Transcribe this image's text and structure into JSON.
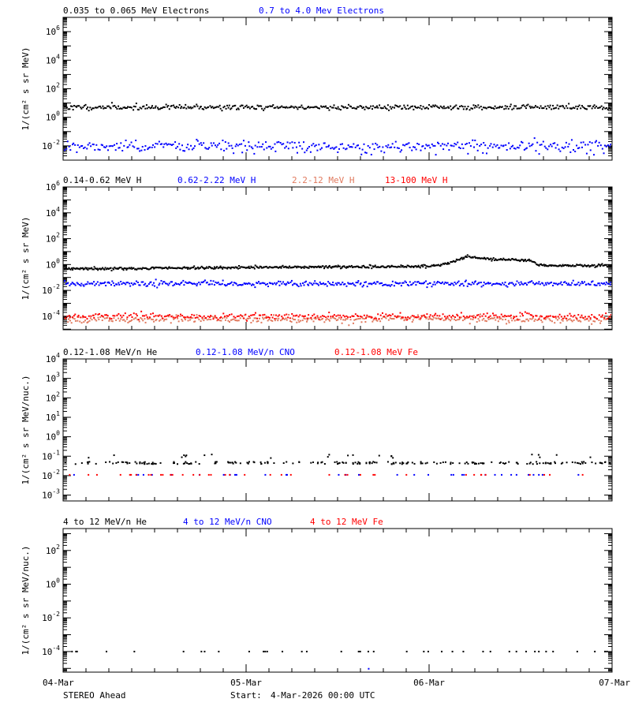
{
  "footer": {
    "spacecraft": "STEREO Ahead",
    "start_label": "Start:",
    "start_value": "4-Mar-2026 00:00 UTC"
  },
  "colors": {
    "black": "#000000",
    "blue": "#0000ff",
    "salmon": "#e07a5f",
    "red": "#ff0000"
  },
  "chart_data": [
    {
      "type": "scatter",
      "scale_y": "log",
      "ylabel": "1/(cm² s sr MeV)",
      "ylim": [
        0.001,
        10000000
      ],
      "yticks": [
        {
          "exp": -2,
          "label": "10-2"
        },
        {
          "exp": 0,
          "label": "100"
        },
        {
          "exp": 2,
          "label": "102"
        },
        {
          "exp": 4,
          "label": "104"
        },
        {
          "exp": 6,
          "label": "106"
        }
      ],
      "xticks": [
        "04-Mar",
        "05-Mar",
        "06-Mar",
        "07-Mar"
      ],
      "xlim_days": [
        0,
        3
      ],
      "series": [
        {
          "name": "0.035 to 0.065 MeV Electrons",
          "color": "#000000",
          "style": "band",
          "level": 5,
          "scatter": 0.09,
          "n": 450,
          "seed": 11
        },
        {
          "name": "0.7 to 4.0 Mev Electrons",
          "color": "#0000ff",
          "style": "band",
          "level": 0.009,
          "scatter": 0.22,
          "n": 380,
          "seed": 12
        }
      ]
    },
    {
      "type": "scatter",
      "scale_y": "log",
      "ylabel": "1/(cm² s sr MeV)",
      "ylim": [
        9e-06,
        1000000
      ],
      "yticks": [
        {
          "exp": -4,
          "label": "10-4"
        },
        {
          "exp": -2,
          "label": "10-2"
        },
        {
          "exp": 0,
          "label": "100"
        },
        {
          "exp": 2,
          "label": "102"
        },
        {
          "exp": 4,
          "label": "104"
        },
        {
          "exp": 6,
          "label": "106"
        }
      ],
      "xticks": [
        "04-Mar",
        "05-Mar",
        "06-Mar",
        "07-Mar"
      ],
      "xlim_days": [
        0,
        3
      ],
      "series": [
        {
          "name": "0.14-0.62 MeV H",
          "color": "#000000",
          "style": "profile",
          "profile": [
            [
              0,
              0.45
            ],
            [
              1.0,
              0.6
            ],
            [
              1.8,
              0.7
            ],
            [
              2.0,
              0.75
            ],
            [
              2.1,
              1.2
            ],
            [
              2.2,
              3.8
            ],
            [
              2.35,
              2.6
            ],
            [
              2.55,
              2.2
            ],
            [
              2.6,
              0.9
            ],
            [
              3.0,
              0.8
            ]
          ],
          "scatter": 0.05,
          "n": 600,
          "seed": 21
        },
        {
          "name": "0.62-2.22 MeV H",
          "color": "#0000ff",
          "style": "band",
          "level": 0.033,
          "scatter": 0.1,
          "n": 450,
          "seed": 22
        },
        {
          "name": "2.2-12 MeV H",
          "color": "#e07a5f",
          "style": "band",
          "level": 6e-05,
          "scatter": 0.13,
          "n": 400,
          "seed": 23
        },
        {
          "name": "13-100 MeV H",
          "color": "#ff0000",
          "style": "band",
          "level": 0.0001,
          "scatter": 0.12,
          "n": 320,
          "seed": 24
        }
      ]
    },
    {
      "type": "scatter",
      "scale_y": "log",
      "ylabel": "1/(cm² s sr MeV/nuc.)",
      "ylim": [
        0.0005,
        10000
      ],
      "yticks": [
        {
          "exp": -3,
          "label": "10-3"
        },
        {
          "exp": -2,
          "label": "10-2"
        },
        {
          "exp": -1,
          "label": "10-1"
        },
        {
          "exp": 0,
          "label": "100"
        },
        {
          "exp": 1,
          "label": "101"
        },
        {
          "exp": 2,
          "label": "102"
        },
        {
          "exp": 3,
          "label": "103"
        },
        {
          "exp": 4,
          "label": "104"
        }
      ],
      "xticks": [
        "04-Mar",
        "05-Mar",
        "06-Mar",
        "07-Mar"
      ],
      "xlim_days": [
        0,
        3
      ],
      "series": [
        {
          "name": "0.12-1.08 MeV/n He",
          "color": "#000000",
          "style": "sparse",
          "level": 0.045,
          "jitter": 0.06,
          "n": 210,
          "seed": 31,
          "extra_level": 0.1,
          "extra_n": 22
        },
        {
          "name": "0.12-1.08 MeV/n CNO",
          "color": "#0000ff",
          "style": "sparse",
          "level": 0.011,
          "jitter": 0.0,
          "n": 34,
          "seed": 32
        },
        {
          "name": "0.12-1.08 MeV Fe",
          "color": "#ff0000",
          "style": "sparse",
          "level": 0.011,
          "jitter": 0.0,
          "n": 40,
          "seed": 33
        }
      ]
    },
    {
      "type": "scatter",
      "scale_y": "log",
      "ylabel": "1/(cm² s sr MeV/nuc.)",
      "ylim": [
        6e-06,
        2000
      ],
      "yticks": [
        {
          "exp": -4,
          "label": "10-4"
        },
        {
          "exp": -2,
          "label": "10-2"
        },
        {
          "exp": 0,
          "label": "100"
        },
        {
          "exp": 2,
          "label": "102"
        }
      ],
      "xticks": [
        "04-Mar",
        "05-Mar",
        "06-Mar",
        "07-Mar"
      ],
      "xlim_days": [
        0,
        3
      ],
      "series": [
        {
          "name": "4 to 12 MeV/n He",
          "color": "#000000",
          "style": "sparse",
          "level": 0.0001,
          "jitter": 0.0,
          "n": 40,
          "seed": 41
        },
        {
          "name": "4 to 12 MeV/n CNO",
          "color": "#0000ff",
          "style": "sparse",
          "level": 9.5e-06,
          "jitter": 0.0,
          "n": 1,
          "seed": 42,
          "fixed_x": [
            1.67
          ]
        },
        {
          "name": "4 to 12 MeV Fe",
          "color": "#ff0000",
          "style": "sparse",
          "level": 0.0001,
          "jitter": 0.0,
          "n": 0,
          "seed": 43
        }
      ]
    }
  ]
}
